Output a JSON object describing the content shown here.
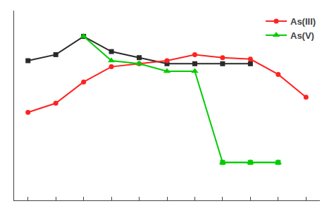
{
  "chart_data": {
    "type": "line",
    "series": [
      {
        "color": "#2a2a2a",
        "marker": "square",
        "x": [
          2,
          3,
          4,
          5,
          6,
          7,
          8,
          9,
          10
        ],
        "values": [
          72,
          76,
          88,
          78,
          74,
          70,
          70,
          70,
          70
        ]
      },
      {
        "name": "As(III)",
        "color": "#ff2222",
        "marker": "circle",
        "x": [
          2,
          3,
          4,
          5,
          6,
          7,
          8,
          9,
          10,
          11,
          12
        ],
        "values": [
          38,
          44,
          58,
          68,
          70,
          72,
          76,
          74,
          73,
          63,
          48
        ]
      },
      {
        "name": "As(V)",
        "color": "#00cc00",
        "marker": "triangle-up",
        "x": [
          4,
          5,
          6,
          7,
          8,
          9,
          10,
          11
        ],
        "values": [
          88,
          72,
          70,
          65,
          65,
          5,
          5,
          5
        ]
      },
      {
        "color": "#00cc00",
        "marker": "square",
        "x": [
          9,
          10,
          11
        ],
        "values": [
          5,
          5,
          5
        ]
      }
    ],
    "xlim": [
      1.5,
      12.5
    ],
    "xticks": [
      2,
      3,
      4,
      5,
      6,
      7,
      8,
      9,
      10,
      11,
      12
    ],
    "ylim": [
      -20,
      105
    ],
    "tick_labels": false,
    "grid": false,
    "legend": "upper right"
  }
}
